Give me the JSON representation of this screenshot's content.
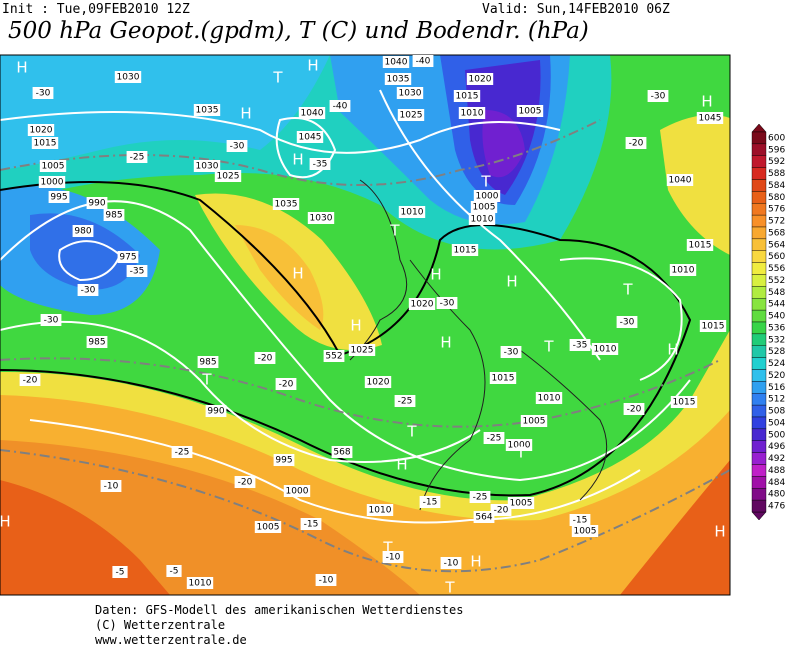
{
  "header": {
    "init": "Init : Tue,09FEB2010 12Z",
    "valid": "Valid: Sun,14FEB2010 06Z",
    "title": "500 hPa Geopot.(gpdm), T (C) und Bodendr. (hPa)"
  },
  "legend": {
    "levels": [
      600,
      596,
      592,
      588,
      584,
      580,
      576,
      572,
      568,
      564,
      560,
      556,
      552,
      548,
      544,
      540,
      536,
      532,
      528,
      524,
      520,
      516,
      512,
      508,
      504,
      500,
      496,
      492,
      488,
      484,
      480,
      476
    ],
    "colors": [
      "#7a0a1a",
      "#9c0f28",
      "#c0182c",
      "#d82a20",
      "#e04818",
      "#e86018",
      "#f07820",
      "#f89028",
      "#f8a830",
      "#f8c038",
      "#f8d840",
      "#f0ec40",
      "#d8f040",
      "#b0ec40",
      "#88e440",
      "#60dc40",
      "#38d448",
      "#20cc78",
      "#20c8a8",
      "#20d0d0",
      "#30c0ec",
      "#30a0f0",
      "#3080f0",
      "#3060e8",
      "#3040e0",
      "#4828d0",
      "#7020d0",
      "#9820d0",
      "#c020c8",
      "#a010a8",
      "#800c88",
      "#600860"
    ]
  },
  "map_labels": [
    "H",
    "1030",
    "T",
    "H",
    "1040",
    "-40",
    "1035",
    "1030",
    "1020",
    "1015",
    "1010",
    "1005",
    "-30",
    "H",
    "1045",
    "-30",
    "1035",
    "H",
    "1040",
    "1025",
    "-40",
    "1020",
    "1015",
    "1005",
    "-25",
    "-30",
    "1045",
    "H",
    "-35",
    "1030",
    "1025",
    "T",
    "1000",
    "1005",
    "1010",
    "-20",
    "1040",
    "1000",
    "995",
    "990",
    "985",
    "980",
    "975",
    "-35",
    "1035",
    "1030",
    "1010",
    "T",
    "1015",
    "1015",
    "-30",
    "H",
    "1010",
    "H",
    "-30",
    "1020",
    "H",
    "T",
    "-30",
    "1015",
    "-30",
    "985",
    "H",
    "1025",
    "552",
    "H",
    "-30",
    "T",
    "-35",
    "1010",
    "H",
    "985",
    "T",
    "-20",
    "-20",
    "1020",
    "1015",
    "-20",
    "990",
    "-25",
    "1010",
    "-20",
    "1015",
    "T",
    "1005",
    "-25",
    "995",
    "568",
    "H",
    "-25",
    "1000",
    "T",
    "-20",
    "1000",
    "-10",
    "-15",
    "-25",
    "1005",
    "1010",
    "-20",
    "564",
    "-15",
    "1005",
    "1005",
    "-15",
    "H",
    "T",
    "H",
    "-10",
    "-10",
    "-5",
    "-5",
    "1010",
    "-10",
    "T",
    "H"
  ],
  "footer": [
    "Daten: GFS-Modell des amerikanischen Wetterdienstes",
    "(C) Wetterzentrale",
    "www.wetterzentrale.de"
  ]
}
